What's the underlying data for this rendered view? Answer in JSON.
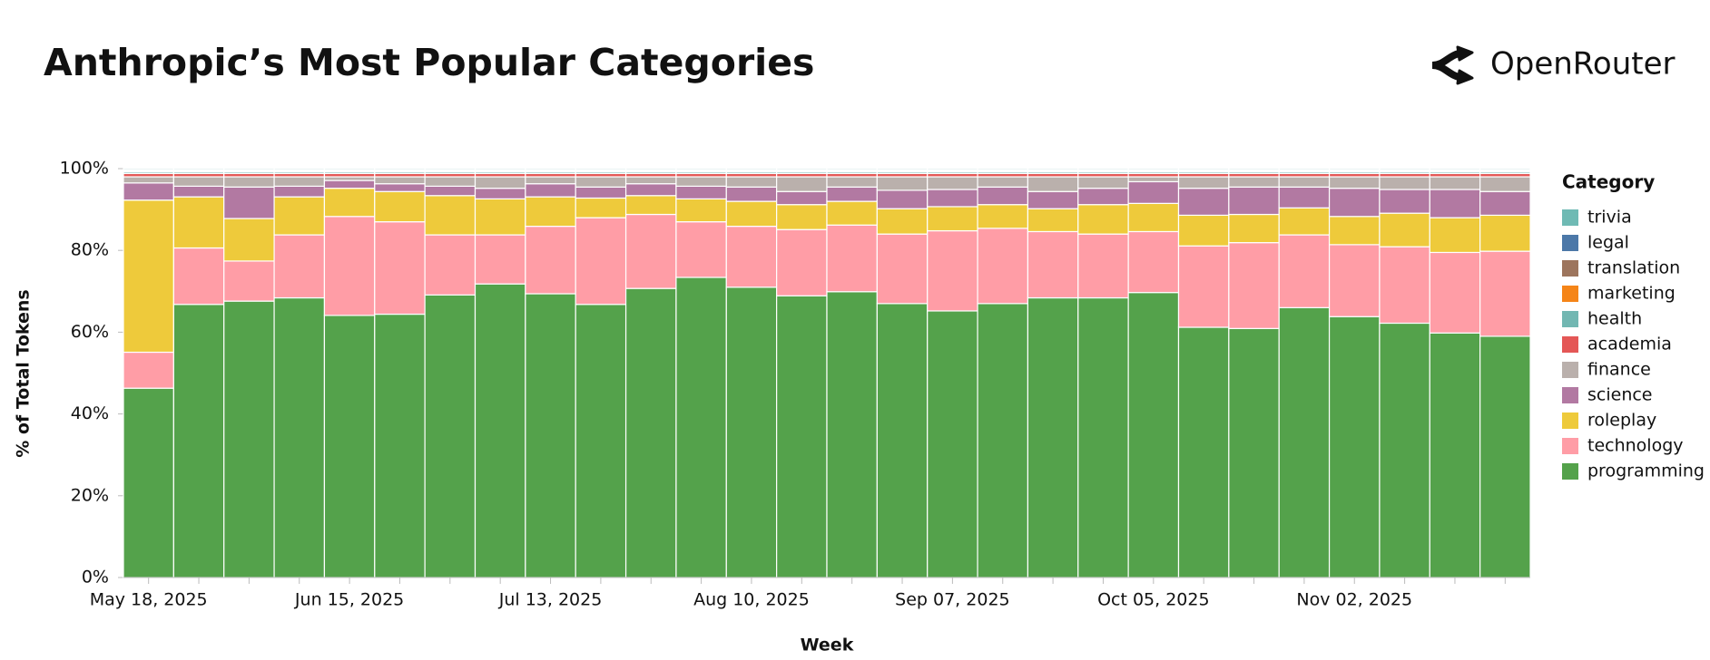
{
  "chart_data": {
    "type": "stacked_bar",
    "title": "Anthropic’s Most Popular Categories",
    "brand": "OpenRouter",
    "x_label": "Week",
    "y_label": "% of Total Tokens",
    "legend_title": "Category",
    "categories": [
      "May 18, 2025",
      null,
      null,
      null,
      "Jun 15, 2025",
      null,
      null,
      null,
      "Jul 13, 2025",
      null,
      null,
      null,
      "Aug 10, 2025",
      null,
      null,
      null,
      "Sep 07, 2025",
      null,
      null,
      null,
      "Oct 05, 2025",
      null,
      null,
      null,
      "Nov 02, 2025",
      null,
      null,
      null
    ],
    "ylim": [
      0,
      100
    ],
    "yticks": [
      {
        "value": 0,
        "label": "0%"
      },
      {
        "value": 20,
        "label": "20%"
      },
      {
        "value": 40,
        "label": "40%"
      },
      {
        "value": 60,
        "label": "60%"
      },
      {
        "value": 80,
        "label": "80%"
      },
      {
        "value": 100,
        "label": "100%"
      }
    ],
    "legend_position": "right",
    "series": [
      {
        "name": "programming",
        "color": "#54a24b",
        "values": [
          46.3,
          66.8,
          67.6,
          68.4,
          64.1,
          64.4,
          69.1,
          71.8,
          69.4,
          66.8,
          70.7,
          73.4,
          71.0,
          68.9,
          69.9,
          67.0,
          65.2,
          67.0,
          68.4,
          68.4,
          69.7,
          61.2,
          60.9,
          66.0,
          63.8,
          62.2,
          59.8,
          59.0
        ]
      },
      {
        "name": "technology",
        "color": "#ff9da6",
        "values": [
          8.8,
          13.8,
          9.8,
          15.4,
          24.2,
          22.6,
          14.7,
          12.0,
          16.5,
          21.2,
          18.1,
          13.6,
          14.9,
          16.2,
          16.3,
          17.0,
          19.6,
          18.4,
          16.2,
          15.6,
          14.9,
          19.9,
          21.0,
          17.8,
          17.6,
          18.7,
          19.7,
          20.8
        ]
      },
      {
        "name": "roleplay",
        "color": "#eeca3b",
        "values": [
          37.2,
          12.5,
          10.4,
          9.3,
          6.9,
          7.4,
          9.6,
          8.8,
          7.2,
          4.8,
          4.6,
          5.6,
          6.1,
          6.1,
          5.8,
          6.2,
          5.9,
          5.8,
          5.6,
          7.2,
          6.9,
          7.5,
          6.9,
          6.6,
          6.9,
          8.2,
          8.5,
          8.8
        ]
      },
      {
        "name": "science",
        "color": "#b279a2",
        "values": [
          4.2,
          2.6,
          7.7,
          2.6,
          1.9,
          1.9,
          2.3,
          2.6,
          3.2,
          2.7,
          2.9,
          3.1,
          3.5,
          3.2,
          3.5,
          4.5,
          4.2,
          4.3,
          4.2,
          4.0,
          5.3,
          6.6,
          6.7,
          5.1,
          6.9,
          5.8,
          6.9,
          5.8
        ]
      },
      {
        "name": "finance",
        "color": "#bab0ac",
        "values": [
          1.5,
          2.3,
          2.5,
          2.3,
          0.9,
          1.7,
          2.3,
          2.8,
          1.7,
          2.5,
          1.7,
          2.3,
          2.5,
          3.6,
          2.5,
          3.3,
          3.1,
          2.5,
          3.6,
          2.8,
          1.2,
          2.8,
          2.5,
          2.5,
          2.8,
          3.1,
          3.1,
          3.6
        ]
      },
      {
        "name": "academia",
        "color": "#e45756",
        "values": [
          0.8,
          0.8,
          0.8,
          0.8,
          0.8,
          0.8,
          0.8,
          0.8,
          0.8,
          0.8,
          0.8,
          0.8,
          0.8,
          0.8,
          0.8,
          0.8,
          0.8,
          0.8,
          0.8,
          0.8,
          0.8,
          0.8,
          0.8,
          0.8,
          0.8,
          0.8,
          0.8,
          0.8
        ]
      },
      {
        "name": "health",
        "color": "#72b7b2",
        "values": [
          0.4,
          0.4,
          0.4,
          0.4,
          0.4,
          0.4,
          0.4,
          0.4,
          0.4,
          0.4,
          0.4,
          0.4,
          0.4,
          0.4,
          0.4,
          0.4,
          0.4,
          0.4,
          0.4,
          0.4,
          0.4,
          0.4,
          0.4,
          0.4,
          0.4,
          0.4,
          0.4,
          0.4
        ]
      },
      {
        "name": "marketing",
        "color": "#f58518",
        "values": [
          0.2,
          0.2,
          0.2,
          0.2,
          0.2,
          0.2,
          0.2,
          0.2,
          0.2,
          0.2,
          0.2,
          0.2,
          0.2,
          0.2,
          0.2,
          0.2,
          0.2,
          0.2,
          0.2,
          0.2,
          0.2,
          0.2,
          0.2,
          0.2,
          0.2,
          0.2,
          0.2,
          0.2
        ]
      },
      {
        "name": "translation",
        "color": "#9d755d",
        "values": [
          0.2,
          0.2,
          0.2,
          0.2,
          0.2,
          0.2,
          0.2,
          0.2,
          0.2,
          0.2,
          0.2,
          0.2,
          0.2,
          0.2,
          0.2,
          0.2,
          0.2,
          0.2,
          0.2,
          0.2,
          0.2,
          0.2,
          0.2,
          0.2,
          0.2,
          0.2,
          0.2,
          0.2
        ]
      },
      {
        "name": "legal",
        "color": "#4c78a8",
        "values": [
          0.1,
          0.1,
          0.1,
          0.1,
          0.1,
          0.1,
          0.1,
          0.1,
          0.1,
          0.1,
          0.1,
          0.1,
          0.1,
          0.1,
          0.1,
          0.1,
          0.1,
          0.1,
          0.1,
          0.1,
          0.1,
          0.1,
          0.1,
          0.1,
          0.1,
          0.1,
          0.1,
          0.1
        ]
      },
      {
        "name": "trivia",
        "color": "#6fbab4",
        "values": [
          0.3,
          0.3,
          0.3,
          0.3,
          0.3,
          0.3,
          0.3,
          0.3,
          0.3,
          0.3,
          0.3,
          0.3,
          0.3,
          0.3,
          0.3,
          0.3,
          0.3,
          0.3,
          0.3,
          0.3,
          0.3,
          0.3,
          0.3,
          0.3,
          0.3,
          0.3,
          0.3,
          0.3
        ]
      }
    ]
  }
}
